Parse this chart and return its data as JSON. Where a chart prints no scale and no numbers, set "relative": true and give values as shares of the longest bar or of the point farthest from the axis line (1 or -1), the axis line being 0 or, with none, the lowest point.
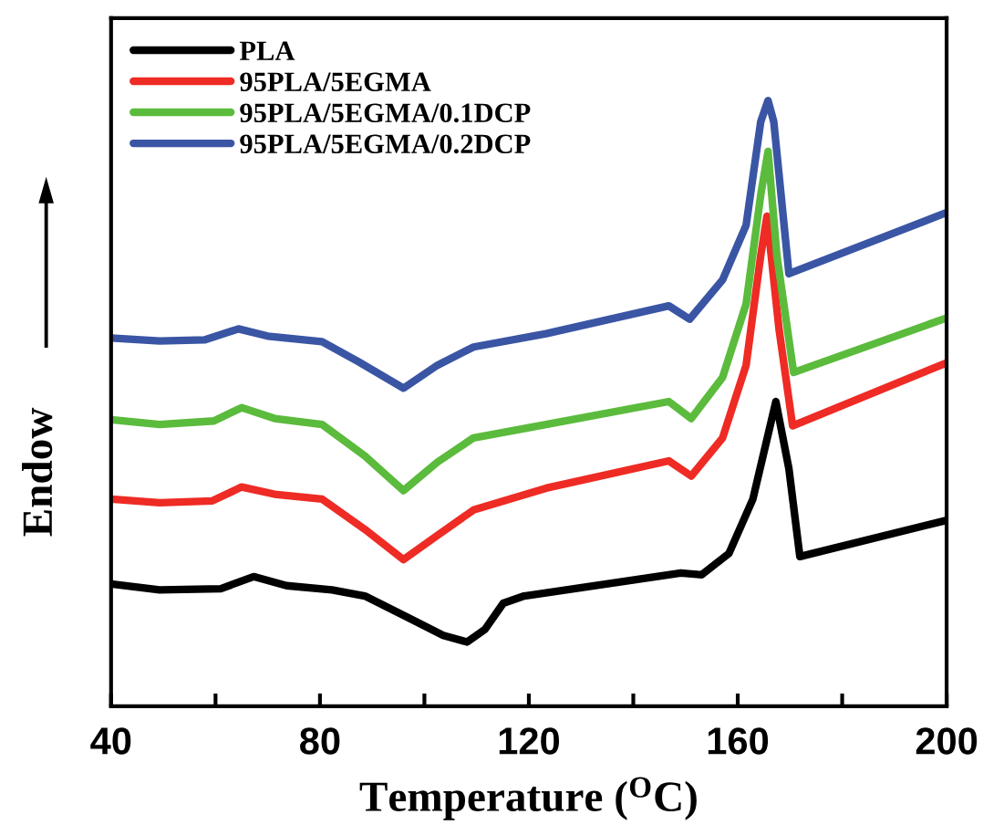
{
  "chart_data": {
    "type": "line",
    "relative": true,
    "xlabel": "Temperature ($^{O}$C)",
    "ylabel": "Endow",
    "xlim": [
      40,
      200
    ],
    "xticks": [
      40,
      {
        "value": 60,
        "label": null
      },
      80,
      {
        "value": 100,
        "label": null
      },
      120,
      {
        "value": 140,
        "label": null
      },
      160,
      {
        "value": 180,
        "label": null
      },
      200
    ],
    "legend": "top left",
    "grid": false,
    "marker": "none",
    "line_style": "solid",
    "series": [
      {
        "name": "PLA",
        "color": "#000000",
        "x": [
          40,
          49.3,
          61,
          67.3,
          73.6,
          82.3,
          88.6,
          96.7,
          103.6,
          108.2,
          111.6,
          115.1,
          119.1,
          123.3,
          149.1,
          153.1,
          158.3,
          162.9,
          167.3,
          169.8,
          171.9,
          200
        ],
        "values": [
          0.202,
          0.192,
          0.194,
          0.214,
          0.199,
          0.192,
          0.182,
          0.147,
          0.117,
          0.106,
          0.127,
          0.17,
          0.182,
          0.187,
          0.22,
          0.217,
          0.252,
          0.342,
          0.503,
          0.392,
          0.247,
          0.307
        ]
      },
      {
        "name": "95PLA/5EGMA",
        "color": "#ee2b24",
        "x": [
          40,
          49.3,
          59.4,
          65,
          71.3,
          80.4,
          88.6,
          96,
          102.5,
          109.4,
          123.3,
          146.8,
          151.1,
          157.1,
          161.6,
          164.4,
          165.6,
          167.9,
          170.5,
          200
        ],
        "values": [
          0.342,
          0.336,
          0.339,
          0.362,
          0.35,
          0.342,
          0.292,
          0.242,
          0.282,
          0.324,
          0.36,
          0.405,
          0.38,
          0.443,
          0.563,
          0.744,
          0.809,
          0.623,
          0.463,
          0.567
        ]
      },
      {
        "name": "95PLA/5EGMA/0.1DCP",
        "color": "#5bbb3c",
        "x": [
          40,
          49.3,
          59.7,
          65,
          71.3,
          80.4,
          88.6,
          96,
          102.5,
          109.4,
          123.3,
          146.8,
          151.1,
          157.1,
          161.6,
          164.4,
          165.8,
          167.5,
          170.7,
          200
        ],
        "values": [
          0.473,
          0.465,
          0.471,
          0.493,
          0.475,
          0.465,
          0.413,
          0.356,
          0.403,
          0.443,
          0.465,
          0.503,
          0.475,
          0.543,
          0.664,
          0.844,
          0.916,
          0.744,
          0.551,
          0.641
        ]
      },
      {
        "name": "95PLA/5EGMA/0.2DCP",
        "color": "#3a55a4",
        "x": [
          40,
          49.3,
          58,
          64.4,
          70,
          80.4,
          87.3,
          96,
          102.5,
          109.4,
          123.3,
          146.8,
          150.8,
          157.1,
          161.6,
          164.4,
          165.8,
          166.9,
          169.8,
          200
        ],
        "values": [
          0.608,
          0.603,
          0.605,
          0.623,
          0.611,
          0.602,
          0.569,
          0.525,
          0.563,
          0.593,
          0.615,
          0.661,
          0.639,
          0.704,
          0.794,
          0.965,
          1,
          0.965,
          0.714,
          0.815
        ]
      }
    ]
  }
}
